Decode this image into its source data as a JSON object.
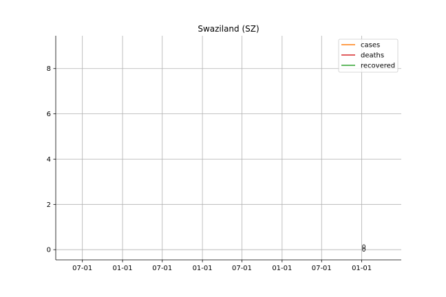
{
  "chart_data": {
    "type": "line",
    "title": "Swaziland (SZ)",
    "xlabel": "",
    "ylabel": "",
    "x_tick_labels": [
      "07-01",
      "01-01",
      "07-01",
      "01-01",
      "07-01",
      "01-01",
      "07-01",
      "01-01"
    ],
    "x_ticks": [
      "2019-07-01",
      "2020-01-01",
      "2020-07-01",
      "2021-01-01",
      "2021-07-01",
      "2022-01-01",
      "2022-07-01",
      "2023-01-01"
    ],
    "xlim": [
      "2019-03-01",
      "2023-07-01"
    ],
    "ylim": [
      -0.45,
      9.45
    ],
    "y_ticks": [
      0,
      2,
      4,
      6,
      8
    ],
    "grid": true,
    "legend_position": "upper right",
    "series": [
      {
        "name": "cases",
        "color": "#ff7f0e",
        "x": [
          "2023-01-01"
        ],
        "y": [
          0
        ]
      },
      {
        "name": "deaths",
        "color": "#d62728",
        "x": [
          "2023-01-01"
        ],
        "y": [
          0
        ]
      },
      {
        "name": "recovered",
        "color": "#2ca02c",
        "x": [
          "2023-01-01"
        ],
        "y": [
          0
        ]
      }
    ],
    "annotations": [
      {
        "text": "0",
        "x": "2023-01-01",
        "y": 0
      },
      {
        "text": "0",
        "x": "2023-01-01",
        "y": 0
      }
    ]
  }
}
